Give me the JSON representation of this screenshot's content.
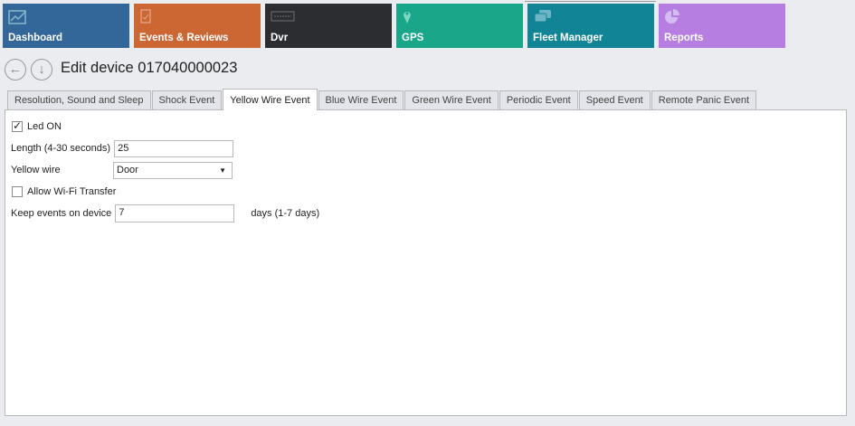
{
  "nav": {
    "tiles": [
      {
        "label": "Dashboard",
        "icon": "chart-icon",
        "color": "#336699"
      },
      {
        "label": "Events & Reviews",
        "icon": "clipboard-check-icon",
        "color": "#cc6633"
      },
      {
        "label": "Dvr",
        "icon": "dvr-icon",
        "color": "#2b2d31"
      },
      {
        "label": "GPS",
        "icon": "map-pin-icon",
        "color": "#1aa689"
      },
      {
        "label": "Fleet Manager",
        "icon": "cars-icon",
        "color": "#118595"
      },
      {
        "label": "Reports",
        "icon": "pie-chart-icon",
        "color": "#b57ee0"
      }
    ]
  },
  "header": {
    "title": "Edit device 017040000023"
  },
  "tabs": [
    "Resolution, Sound and Sleep",
    "Shock Event",
    "Yellow Wire Event",
    "Blue Wire Event",
    "Green Wire Event",
    "Periodic Event",
    "Speed Event",
    "Remote Panic Event"
  ],
  "form": {
    "led_label": "Led ON",
    "led_checked": true,
    "length_label": "Length (4-30 seconds)",
    "length_value": "25",
    "wire_label": "Yellow wire",
    "wire_value": "Door",
    "wifi_label": "Allow Wi-Fi Transfer",
    "wifi_checked": false,
    "keep_label": "Keep events on device",
    "keep_value": "7",
    "keep_suffix": "days (1-7 days)"
  }
}
